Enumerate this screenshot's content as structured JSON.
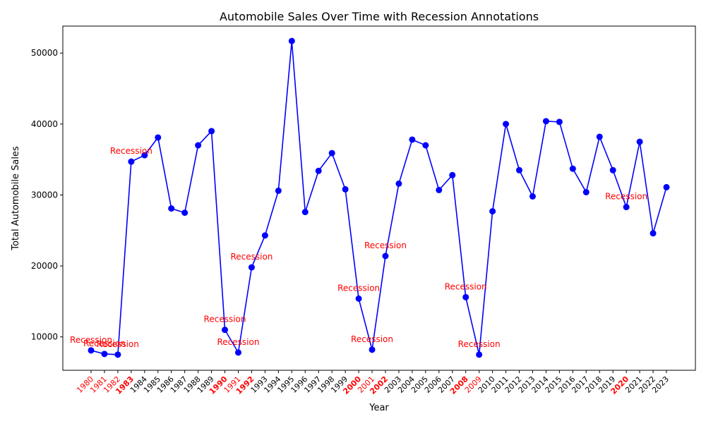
{
  "chart_data": {
    "type": "line",
    "title": "Automobile Sales Over Time with Recession Annotations",
    "xlabel": "Year",
    "ylabel": "Total Automobile Sales",
    "ylim": [
      5300,
      53800
    ],
    "y_ticks": [
      10000,
      20000,
      30000,
      40000,
      50000
    ],
    "grid": false,
    "series_color": "#0000ff",
    "recession_color": "#ff0000",
    "annotation_text": "Recession",
    "x": [
      "1980",
      "1981",
      "1982",
      "1983",
      "1984",
      "1985",
      "1986",
      "1987",
      "1988",
      "1989",
      "1990",
      "1991",
      "1992",
      "1993",
      "1994",
      "1995",
      "1996",
      "1997",
      "1998",
      "1999",
      "2000",
      "2001",
      "2002",
      "2003",
      "2004",
      "2005",
      "2006",
      "2007",
      "2008",
      "2009",
      "2010",
      "2011",
      "2012",
      "2013",
      "2014",
      "2015",
      "2016",
      "2017",
      "2018",
      "2019",
      "2020",
      "2021",
      "2022",
      "2023"
    ],
    "values": [
      8100,
      7600,
      7500,
      34700,
      35600,
      38100,
      28100,
      27500,
      37000,
      39000,
      11000,
      7800,
      19800,
      24300,
      30600,
      51700,
      27600,
      33400,
      35900,
      30800,
      15400,
      8200,
      21400,
      31600,
      37800,
      37000,
      30700,
      32800,
      15600,
      7500,
      27700,
      40000,
      33500,
      29800,
      40400,
      40300,
      33700,
      30400,
      38200,
      33500,
      28300,
      37500,
      24600,
      31100
    ],
    "recession_years": [
      "1980",
      "1981",
      "1982",
      "1983",
      "1990",
      "1991",
      "1992",
      "2000",
      "2001",
      "2002",
      "2008",
      "2009",
      "2020"
    ],
    "bold_recession_years": [
      "1983",
      "1990",
      "1992",
      "2000",
      "2002",
      "2008",
      "2020"
    ]
  }
}
